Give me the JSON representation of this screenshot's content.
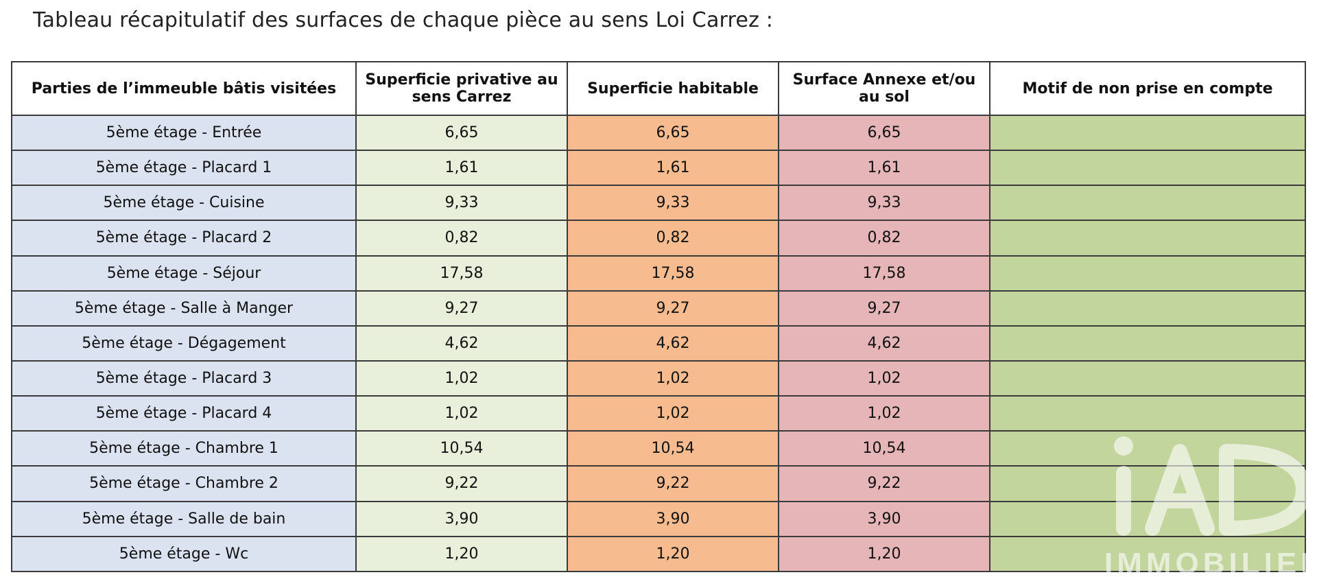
{
  "title": "Tableau récapitulatif des surfaces de chaque pièce au sens Loi Carrez :",
  "colors": {
    "room_column": "#dae3ef",
    "carrez_column": "#e8f0db",
    "habitable_column": "#f6bb8f",
    "annexe_column": "#e5b5b7",
    "motif_column": "#c2d59d",
    "border": "#3a3a3a"
  },
  "table": {
    "headers": {
      "room": "Parties de l’immeuble bâtis visitées",
      "carrez": "Superficie privative au sens Carrez",
      "habitable": "Superficie habitable",
      "annexe": "Surface Annexe et/ou au sol",
      "motif": "Motif de non prise en compte"
    },
    "rows": [
      {
        "room": "5ème étage - Entrée",
        "carrez": "6,65",
        "habitable": "6,65",
        "annexe": "6,65",
        "motif": ""
      },
      {
        "room": "5ème étage - Placard 1",
        "carrez": "1,61",
        "habitable": "1,61",
        "annexe": "1,61",
        "motif": ""
      },
      {
        "room": "5ème étage - Cuisine",
        "carrez": "9,33",
        "habitable": "9,33",
        "annexe": "9,33",
        "motif": ""
      },
      {
        "room": "5ème étage - Placard 2",
        "carrez": "0,82",
        "habitable": "0,82",
        "annexe": "0,82",
        "motif": ""
      },
      {
        "room": "5ème étage - Séjour",
        "carrez": "17,58",
        "habitable": "17,58",
        "annexe": "17,58",
        "motif": ""
      },
      {
        "room": "5ème étage - Salle à Manger",
        "carrez": "9,27",
        "habitable": "9,27",
        "annexe": "9,27",
        "motif": ""
      },
      {
        "room": "5ème étage - Dégagement",
        "carrez": "4,62",
        "habitable": "4,62",
        "annexe": "4,62",
        "motif": ""
      },
      {
        "room": "5ème étage - Placard 3",
        "carrez": "1,02",
        "habitable": "1,02",
        "annexe": "1,02",
        "motif": ""
      },
      {
        "room": "5ème étage - Placard 4",
        "carrez": "1,02",
        "habitable": "1,02",
        "annexe": "1,02",
        "motif": ""
      },
      {
        "room": "5ème étage - Chambre 1",
        "carrez": "10,54",
        "habitable": "10,54",
        "annexe": "10,54",
        "motif": ""
      },
      {
        "room": "5ème étage - Chambre 2",
        "carrez": "9,22",
        "habitable": "9,22",
        "annexe": "9,22",
        "motif": ""
      },
      {
        "room": "5ème étage - Salle de bain",
        "carrez": "3,90",
        "habitable": "3,90",
        "annexe": "3,90",
        "motif": ""
      },
      {
        "room": "5ème étage - Wc",
        "carrez": "1,20",
        "habitable": "1,20",
        "annexe": "1,20",
        "motif": ""
      }
    ]
  },
  "watermark": {
    "icon": "iad-logo-watermark",
    "text": "IMMOBILIER"
  }
}
